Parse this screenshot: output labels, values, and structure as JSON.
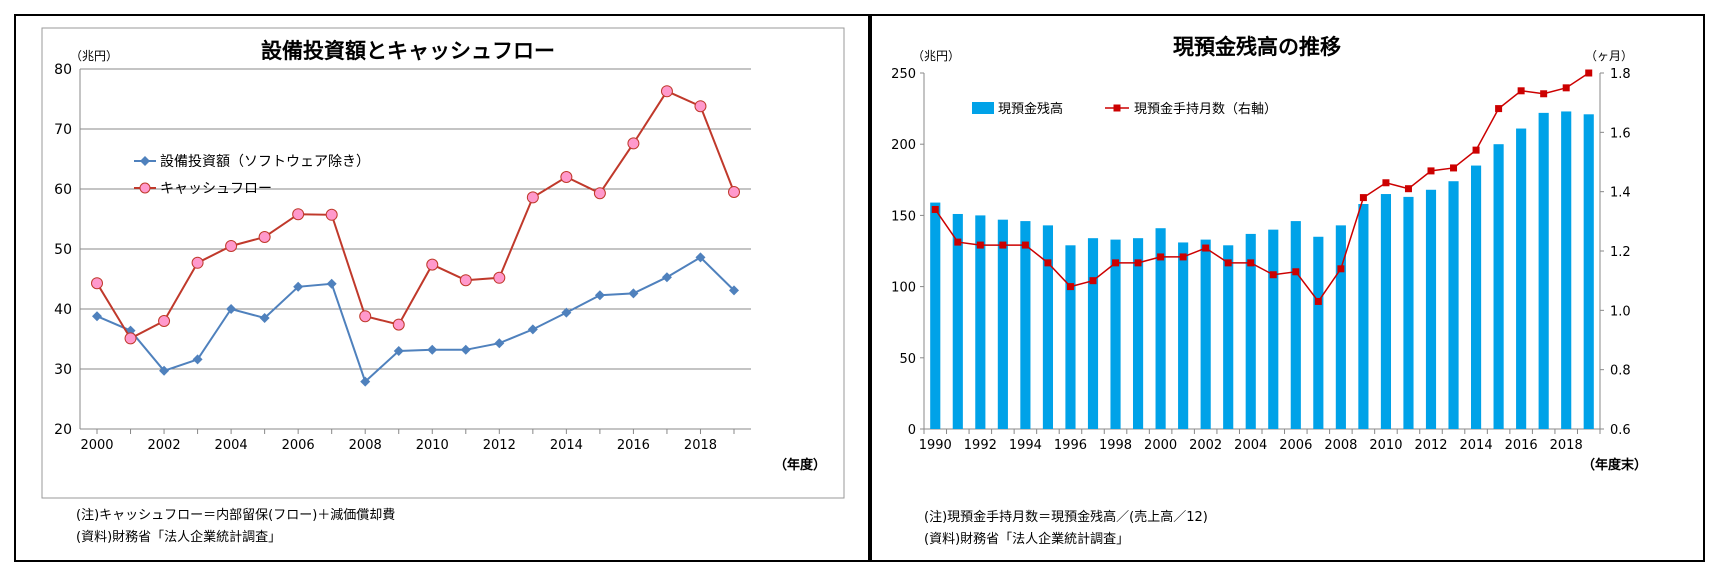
{
  "chart_data": [
    {
      "type": "line",
      "title": "設備投資額とキャッシュフロー",
      "unit_label": "（兆円）",
      "xlabel": "（年度）",
      "x": [
        2000,
        2001,
        2002,
        2003,
        2004,
        2005,
        2006,
        2007,
        2008,
        2009,
        2010,
        2011,
        2012,
        2013,
        2014,
        2015,
        2016,
        2017,
        2018,
        2019
      ],
      "xticks": [
        "2000",
        "2002",
        "2004",
        "2006",
        "2008",
        "2010",
        "2012",
        "2014",
        "2016",
        "2018"
      ],
      "ylim": [
        20,
        80
      ],
      "yticks": [
        "20",
        "30",
        "40",
        "50",
        "60",
        "70",
        "80"
      ],
      "grid": true,
      "legend": "top-left",
      "series": [
        {
          "name": "設備投資額（ソフトウェア除き）",
          "color": "#4f81bd",
          "marker": "diamond",
          "values": [
            38.8,
            36.4,
            29.7,
            31.6,
            40.0,
            38.5,
            43.7,
            44.2,
            27.9,
            33.0,
            33.2,
            33.2,
            34.3,
            36.6,
            39.4,
            42.3,
            42.6,
            45.3,
            48.6,
            43.1
          ]
        },
        {
          "name": "キャッシュフロー",
          "color": "#c0392b",
          "marker": "circle",
          "values": [
            44.3,
            35.1,
            38.0,
            47.7,
            50.5,
            52.0,
            55.8,
            55.7,
            38.8,
            37.4,
            47.4,
            44.8,
            45.2,
            58.6,
            62.0,
            59.3,
            67.6,
            76.3,
            73.8,
            59.5
          ]
        }
      ],
      "notes": [
        "(注)キャッシュフロー＝内部留保(フロー)＋減価償却費",
        "(資料)財務省「法人企業統計調査」"
      ]
    },
    {
      "type": "bar",
      "title": "現預金残高の推移",
      "unit_label_left": "（兆円）",
      "unit_label_right": "（ヶ月）",
      "xlabel": "（年度末）",
      "x": [
        1990,
        1991,
        1992,
        1993,
        1994,
        1995,
        1996,
        1997,
        1998,
        1999,
        2000,
        2001,
        2002,
        2003,
        2004,
        2005,
        2006,
        2007,
        2008,
        2009,
        2010,
        2011,
        2012,
        2013,
        2014,
        2015,
        2016,
        2017,
        2018,
        2019
      ],
      "xticks": [
        "1990",
        "1992",
        "1994",
        "1996",
        "1998",
        "2000",
        "2002",
        "2004",
        "2006",
        "2008",
        "2010",
        "2012",
        "2014",
        "2016",
        "2018"
      ],
      "ylim": [
        0,
        250
      ],
      "yticks": [
        "0",
        "50",
        "100",
        "150",
        "200",
        "250"
      ],
      "y2lim": [
        0.6,
        1.8
      ],
      "y2ticks": [
        "0.6",
        "0.8",
        "1.0",
        "1.2",
        "1.4",
        "1.6",
        "1.8"
      ],
      "legend": "top-left",
      "series": [
        {
          "name": "現預金残高",
          "color": "#00a2e8",
          "axis": "left",
          "values": [
            159,
            151,
            150,
            147,
            146,
            143,
            129,
            134,
            133,
            134,
            141,
            131,
            133,
            129,
            137,
            140,
            146,
            135,
            143,
            158,
            165,
            163,
            168,
            174,
            185,
            200,
            211,
            222,
            223,
            221
          ]
        },
        {
          "name": "現預金手持月数（右軸）",
          "color": "#cc0000",
          "axis": "right",
          "marker": "square",
          "values": [
            1.34,
            1.23,
            1.22,
            1.22,
            1.22,
            1.16,
            1.08,
            1.1,
            1.16,
            1.16,
            1.18,
            1.18,
            1.21,
            1.16,
            1.16,
            1.12,
            1.13,
            1.03,
            1.14,
            1.38,
            1.43,
            1.41,
            1.47,
            1.48,
            1.54,
            1.68,
            1.74,
            1.73,
            1.75,
            1.8
          ]
        }
      ],
      "notes": [
        "(注)現預金手持月数＝現預金残高／(売上高／12)",
        "(資料)財務省「法人企業統計調査」"
      ]
    }
  ]
}
